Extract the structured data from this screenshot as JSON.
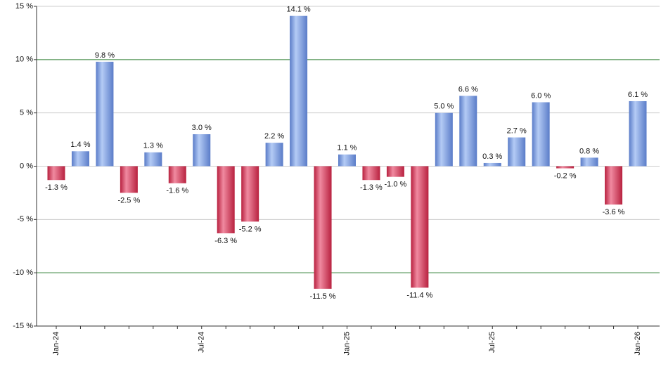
{
  "chart_data": {
    "type": "bar",
    "categories": [
      "Jan-24",
      null,
      null,
      null,
      null,
      null,
      "Jul-24",
      null,
      null,
      null,
      null,
      null,
      "Jan-25",
      null,
      null,
      null,
      null,
      null,
      "Jul-25",
      null,
      null,
      null,
      null,
      null,
      "Jan-26"
    ],
    "values": [
      -1.3,
      1.4,
      9.8,
      -2.5,
      1.3,
      -1.6,
      3.0,
      -6.3,
      -5.2,
      2.2,
      14.1,
      -11.5,
      1.1,
      -1.3,
      -1.0,
      -11.4,
      5.0,
      6.6,
      0.3,
      2.7,
      6.0,
      -0.2,
      0.8,
      -3.6,
      6.1
    ],
    "value_labels": [
      "-1.3 %",
      "1.4 %",
      "9.8 %",
      "-2.5 %",
      "1.3 %",
      "-1.6 %",
      "3.0 %",
      "-6.3 %",
      "-5.2 %",
      "2.2 %",
      "14.1 %",
      "-11.5 %",
      "1.1 %",
      "-1.3 %",
      "-1.0 %",
      "-11.4 %",
      "5.0 %",
      "6.6 %",
      "0.3 %",
      "2.7 %",
      "6.0 %",
      "-0.2 %",
      "0.8 %",
      "-3.6 %",
      "6.1 %"
    ],
    "positive_colors": [
      "#b4cbf5",
      "#5a7cc8"
    ],
    "negative_colors": [
      "#f08aa0",
      "#b8213f"
    ],
    "ylim": [
      -15,
      15
    ],
    "yticks": [
      {
        "value": -15,
        "label": "-15 %"
      },
      {
        "value": -10,
        "label": "-10 %"
      },
      {
        "value": -5,
        "label": "-5 %"
      },
      {
        "value": 0,
        "label": "0 %"
      },
      {
        "value": 5,
        "label": "5 %"
      },
      {
        "value": 10,
        "label": "10 %"
      },
      {
        "value": 15,
        "label": "15 %"
      }
    ],
    "grid": true,
    "grid_color": "#cccccc",
    "highlight_grid": [
      -10,
      10
    ],
    "highlight_grid_color": "#2e7d32"
  }
}
